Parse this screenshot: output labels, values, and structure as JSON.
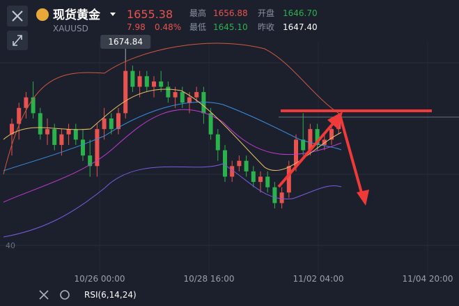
{
  "header": {
    "name": "现货黄金",
    "symbol": "XAUUSD",
    "price": "1655.38",
    "change": "7.98",
    "change_pct": "0.48%",
    "high_label": "最高",
    "high": "1656.88",
    "low_label": "最低",
    "low": "1645.10",
    "open_label": "开盘",
    "open": "1646.70",
    "prev_label": "昨收",
    "prev": "1647.40"
  },
  "chart_data": {
    "type": "candlestick",
    "max_label": "1674.84",
    "open": [
      1661,
      1663,
      1666,
      1668,
      1665,
      1661,
      1662,
      1659,
      1661,
      1662,
      1660,
      1657,
      1655,
      1662,
      1664,
      1662,
      1665,
      1673,
      1670,
      1672,
      1670,
      1671,
      1670,
      1668,
      1669,
      1667,
      1668,
      1669,
      1665,
      1661,
      1658,
      1653,
      1655,
      1656,
      1654,
      1652,
      1653,
      1651,
      1648,
      1650,
      1655,
      1660,
      1658,
      1662,
      1659,
      1660,
      1662
    ],
    "high": [
      1664,
      1667,
      1669,
      1671,
      1666,
      1664,
      1663,
      1662,
      1663,
      1663,
      1662,
      1660,
      1663,
      1666,
      1665,
      1666,
      1674.84,
      1674,
      1673,
      1673,
      1672,
      1673,
      1671,
      1670,
      1670,
      1669,
      1670,
      1670,
      1666,
      1662,
      1659,
      1656,
      1657,
      1657,
      1655,
      1654,
      1654,
      1652,
      1651,
      1656,
      1661,
      1665,
      1663,
      1663,
      1661,
      1663,
      1665
    ],
    "low": [
      1657,
      1660,
      1664,
      1664,
      1660,
      1659,
      1658,
      1657,
      1659,
      1659,
      1656,
      1653,
      1653,
      1660,
      1661,
      1661,
      1664,
      1669,
      1668,
      1669,
      1668,
      1669,
      1667,
      1666,
      1666,
      1665,
      1667,
      1663,
      1660,
      1656,
      1652,
      1652,
      1654,
      1653,
      1651,
      1650,
      1650,
      1647,
      1647,
      1649,
      1654,
      1657,
      1657,
      1658,
      1658,
      1659,
      1661
    ],
    "close": [
      1663,
      1666,
      1668,
      1665,
      1661,
      1662,
      1659,
      1661,
      1662,
      1660,
      1657,
      1655,
      1662,
      1664,
      1662,
      1665,
      1673,
      1670,
      1672,
      1670,
      1671,
      1670,
      1668,
      1669,
      1667,
      1668,
      1669,
      1665,
      1661,
      1658,
      1653,
      1655,
      1656,
      1654,
      1652,
      1653,
      1651,
      1648,
      1650,
      1655,
      1660,
      1658,
      1662,
      1659,
      1660,
      1662,
      1664
    ],
    "up_color": "#e8534f",
    "down_color": "#2bb24c",
    "ylim": [
      1635,
      1678.5
    ],
    "yticks": [
      {
        "value": 1640,
        "label": "40"
      }
    ],
    "x_tick_labels": [
      "10/26 00:00",
      "10/28 16:00",
      "11/02 04:00",
      "11/04 20:00"
    ],
    "indicator": "RSI(6,14,24)"
  }
}
